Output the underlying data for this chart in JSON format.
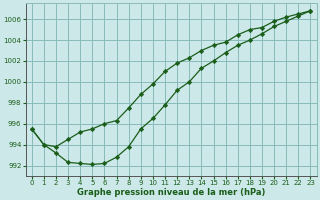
{
  "xlabel": "Graphe pression niveau de la mer (hPa)",
  "background_color": "#cce8e8",
  "grid_color": "#88bbbb",
  "line_color": "#1a5e1a",
  "marker_color": "#1a5e1a",
  "ylim": [
    991.0,
    1007.5
  ],
  "xlim": [
    -0.5,
    23.5
  ],
  "yticks": [
    992,
    994,
    996,
    998,
    1000,
    1002,
    1004,
    1006
  ],
  "xticks": [
    0,
    1,
    2,
    3,
    4,
    5,
    6,
    7,
    8,
    9,
    10,
    11,
    12,
    13,
    14,
    15,
    16,
    17,
    18,
    19,
    20,
    21,
    22,
    23
  ],
  "series1_x": [
    0,
    1,
    2,
    3,
    4,
    5,
    6,
    7,
    8,
    9,
    10,
    11,
    12,
    13,
    14,
    15,
    16,
    17,
    18,
    19,
    20,
    21,
    22,
    23
  ],
  "series1_y": [
    995.5,
    994.0,
    993.8,
    994.5,
    995.2,
    995.5,
    996.0,
    996.3,
    997.5,
    998.8,
    999.8,
    1001.0,
    1001.8,
    1002.3,
    1003.0,
    1003.5,
    1003.8,
    1004.5,
    1005.0,
    1005.2,
    1005.8,
    1006.2,
    1006.5,
    1006.8
  ],
  "series2_x": [
    0,
    1,
    2,
    3,
    4,
    5,
    6,
    7,
    8,
    9,
    10,
    11,
    12,
    13,
    14,
    15,
    16,
    17,
    18,
    19,
    20,
    21,
    22,
    23
  ],
  "series2_y": [
    995.5,
    994.0,
    993.2,
    992.3,
    992.2,
    992.1,
    992.2,
    992.8,
    993.8,
    995.5,
    996.5,
    997.8,
    999.2,
    1000.0,
    1001.3,
    1002.0,
    1002.8,
    1003.5,
    1004.0,
    1004.6,
    1005.3,
    1005.8,
    1006.3,
    1006.8
  ]
}
